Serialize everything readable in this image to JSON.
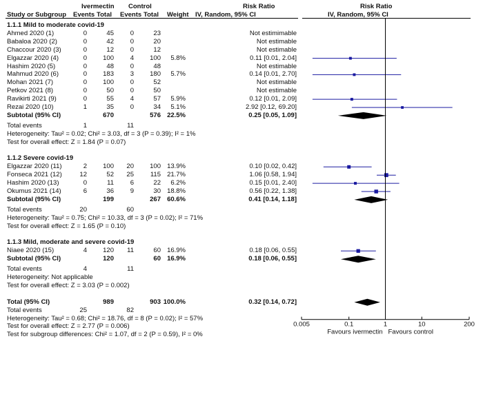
{
  "header": {
    "group1": "Ivermectin",
    "group2": "Control",
    "rr_title": "Risk Ratio",
    "plot_title": "Risk Ratio",
    "study_label": "Study or Subgroup",
    "events1": "Events",
    "total1": "Total",
    "events2": "Events",
    "total2": "Total",
    "weight": "Weight",
    "method": "IV, Random, 95% CI",
    "plot_method": "IV, Random, 95% CI"
  },
  "subgroups": [
    {
      "title": "1.1.1 Mild to moderate covid-19",
      "studies": [
        {
          "name": "Ahmed 2020 (1)",
          "e1": "0",
          "t1": "45",
          "e2": "0",
          "t2": "23",
          "w": "",
          "ci": "Not estimimable",
          "rr": null
        },
        {
          "name": "Babaloa 2020 (2)",
          "e1": "0",
          "t1": "42",
          "e2": "0",
          "t2": "20",
          "w": "",
          "ci": "Not estimable",
          "rr": null
        },
        {
          "name": "Chaccour 2020 (3)",
          "e1": "0",
          "t1": "12",
          "e2": "0",
          "t2": "12",
          "w": "",
          "ci": "Not estimable",
          "rr": null
        },
        {
          "name": "Elgazzar 2020 (4)",
          "e1": "0",
          "t1": "100",
          "e2": "4",
          "t2": "100",
          "w": "5.8%",
          "ci": "0.11 [0.01, 2.04]",
          "rr": 0.11,
          "lo": 0.01,
          "hi": 2.04,
          "weight": 5.8
        },
        {
          "name": "Hashim 2020 (5)",
          "e1": "0",
          "t1": "48",
          "e2": "0",
          "t2": "48",
          "w": "",
          "ci": "Not estimable",
          "rr": null
        },
        {
          "name": "Mahmud 2020 (6)",
          "e1": "0",
          "t1": "183",
          "e2": "3",
          "t2": "180",
          "w": "5.7%",
          "ci": "0.14 [0.01, 2.70]",
          "rr": 0.14,
          "lo": 0.01,
          "hi": 2.7,
          "weight": 5.7
        },
        {
          "name": "Mohan 2021 (7)",
          "e1": "0",
          "t1": "100",
          "e2": "0",
          "t2": "52",
          "w": "",
          "ci": "Not estimable",
          "rr": null
        },
        {
          "name": "Petkov 2021 (8)",
          "e1": "0",
          "t1": "50",
          "e2": "0",
          "t2": "50",
          "w": "",
          "ci": "Not estimable",
          "rr": null
        },
        {
          "name": "Ravikirti 2021 (9)",
          "e1": "0",
          "t1": "55",
          "e2": "4",
          "t2": "57",
          "w": "5.9%",
          "ci": "0.12 [0.01, 2.09]",
          "rr": 0.12,
          "lo": 0.01,
          "hi": 2.09,
          "weight": 5.9
        },
        {
          "name": "Rezai 2020 (10)",
          "e1": "1",
          "t1": "35",
          "e2": "0",
          "t2": "34",
          "w": "5.1%",
          "ci": "2.92 [0.12, 69.20]",
          "rr": 2.92,
          "lo": 0.12,
          "hi": 69.2,
          "weight": 5.1
        }
      ],
      "subtotal": {
        "label": "Subtotal (95% CI)",
        "t1": "670",
        "t2": "576",
        "w": "22.5%",
        "ci": "0.25 [0.05, 1.09]",
        "rr": 0.25,
        "lo": 0.05,
        "hi": 1.09
      },
      "total_events": {
        "label": "Total events",
        "e1": "1",
        "e2": "11"
      },
      "heterogeneity": "Heterogeneity: Tau² = 0.02; Chi² = 3.03, df = 3 (P = 0.39); I² = 1%",
      "overall": "Test for overall effect: Z = 1.84 (P = 0.07)"
    },
    {
      "title": "1.1.2 Severe covid-19",
      "studies": [
        {
          "name": "Elgazzar 2020 (11)",
          "e1": "2",
          "t1": "100",
          "e2": "20",
          "t2": "100",
          "w": "13.9%",
          "ci": "0.10 [0.02, 0.42]",
          "rr": 0.1,
          "lo": 0.02,
          "hi": 0.42,
          "weight": 13.9
        },
        {
          "name": "Fonseca 2021 (12)",
          "e1": "12",
          "t1": "52",
          "e2": "25",
          "t2": "115",
          "w": "21.7%",
          "ci": "1.06 [0.58, 1.94]",
          "rr": 1.06,
          "lo": 0.58,
          "hi": 1.94,
          "weight": 21.7
        },
        {
          "name": "Hashim 2020 (13)",
          "e1": "0",
          "t1": "11",
          "e2": "6",
          "t2": "22",
          "w": "6.2%",
          "ci": "0.15 [0.01, 2.40]",
          "rr": 0.15,
          "lo": 0.01,
          "hi": 2.4,
          "weight": 6.2
        },
        {
          "name": "Okumus 2021 (14)",
          "e1": "6",
          "t1": "36",
          "e2": "9",
          "t2": "30",
          "w": "18.8%",
          "ci": "0.56 [0.22, 1.38]",
          "rr": 0.56,
          "lo": 0.22,
          "hi": 1.38,
          "weight": 18.8
        }
      ],
      "subtotal": {
        "label": "Subtotal (95% CI)",
        "t1": "199",
        "t2": "267",
        "w": "60.6%",
        "ci": "0.41 [0.14, 1.18]",
        "rr": 0.41,
        "lo": 0.14,
        "hi": 1.18
      },
      "total_events": {
        "label": "Total events",
        "e1": "20",
        "e2": "60"
      },
      "heterogeneity": "Heterogeneity: Tau² = 0.75; Chi² = 10.33, df = 3 (P = 0.02); I² = 71%",
      "overall": "Test for overall effect: Z = 1.65 (P = 0.10)"
    },
    {
      "title": "1.1.3 Mild, moderate and severe covid-19",
      "studies": [
        {
          "name": "Niaee 2020 (15)",
          "e1": "4",
          "t1": "120",
          "e2": "11",
          "t2": "60",
          "w": "16.9%",
          "ci": "0.18 [0.06, 0.55]",
          "rr": 0.18,
          "lo": 0.06,
          "hi": 0.55,
          "weight": 16.9
        }
      ],
      "subtotal": {
        "label": "Subtotal (95% CI)",
        "t1": "120",
        "t2": "60",
        "w": "16.9%",
        "ci": "0.18 [0.06, 0.55]",
        "rr": 0.18,
        "lo": 0.06,
        "hi": 0.55
      },
      "total_events": {
        "label": "Total events",
        "e1": "4",
        "e2": "11"
      },
      "heterogeneity": "Heterogeneity: Not applicable",
      "overall": "Test for overall effect: Z = 3.03 (P = 0.002)"
    }
  ],
  "total": {
    "label": "Total (95% CI)",
    "t1": "989",
    "t2": "903",
    "w": "100.0%",
    "ci": "0.32 [0.14, 0.72]",
    "rr": 0.32,
    "lo": 0.14,
    "hi": 0.72
  },
  "total_events": {
    "label": "Total events",
    "e1": "25",
    "e2": "82"
  },
  "heterogeneity": "Heterogeneity: Tau² = 0.68; Chi² = 18.76, df = 8 (P = 0.02); I² = 57%",
  "overall": "Test for overall effect: Z = 2.77 (P = 0.006)",
  "subgroup_diff": "Test for subgroup differences: Chi² = 1.07, df = 2 (P = 0.59), I² = 0%",
  "chart_data": {
    "type": "forest",
    "x_scale": "log",
    "xlim": [
      0.005,
      200
    ],
    "ticks": [
      "0.005",
      "0.1",
      "1",
      "10",
      "200"
    ],
    "xlabel_left": "Favours ivermectin",
    "xlabel_right": "Favours control",
    "colors": {
      "study": "#1a1aa0",
      "line": "#000000",
      "diamond": "#000000"
    }
  }
}
